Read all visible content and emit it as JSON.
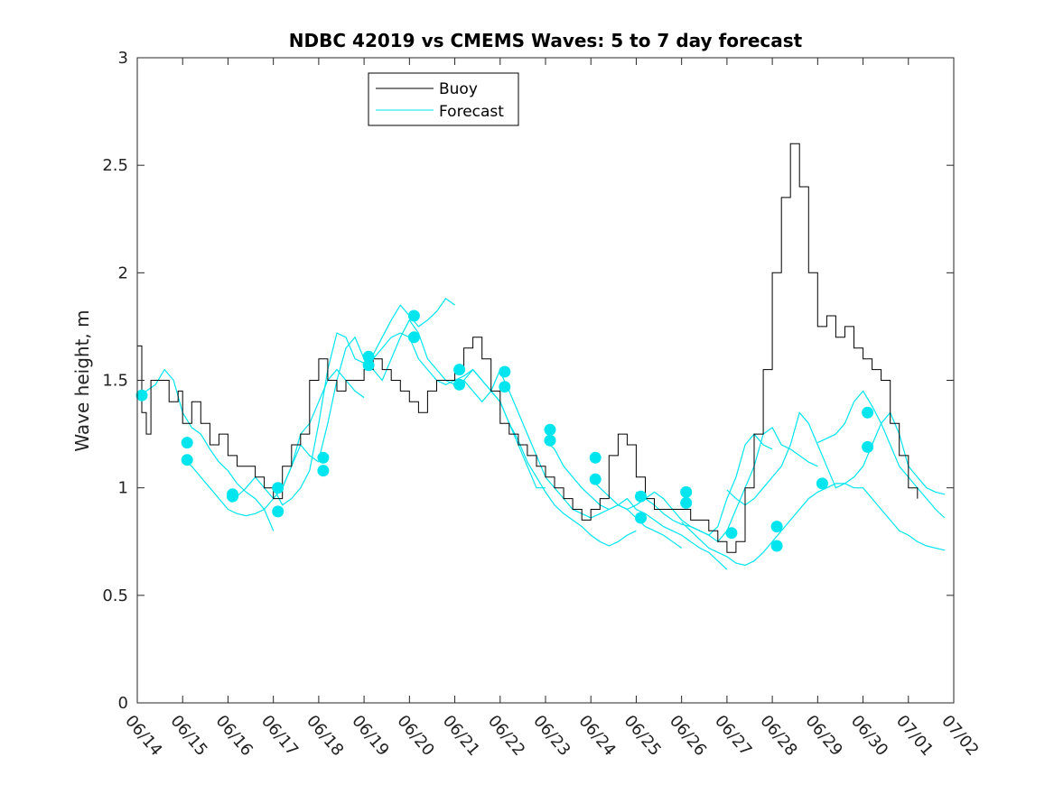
{
  "chart_data": {
    "type": "line",
    "title": "NDBC 42019 vs CMEMS Waves: 5 to 7 day forecast",
    "xlabel": "",
    "ylabel": "Wave height, m",
    "ylim": [
      0,
      3
    ],
    "yticks": [
      "0",
      "0.5",
      "1",
      "1.5",
      "2",
      "2.5",
      "3"
    ],
    "xticks": [
      "06/14",
      "06/15",
      "06/16",
      "06/17",
      "06/18",
      "06/19",
      "06/20",
      "06/21",
      "06/22",
      "06/23",
      "06/24",
      "06/25",
      "06/26",
      "06/27",
      "06/28",
      "06/29",
      "06/30",
      "07/01",
      "07/02"
    ],
    "grid": false,
    "legend_position": "top-center",
    "colors": {
      "buoy": "#000000",
      "forecast": "#00e5ee"
    },
    "series": [
      {
        "name": "Buoy",
        "x": [
          0,
          0.1,
          0.2,
          0.3,
          0.5,
          0.7,
          0.9,
          1.0,
          1.2,
          1.4,
          1.6,
          1.8,
          2.0,
          2.2,
          2.4,
          2.6,
          2.8,
          3.0,
          3.2,
          3.4,
          3.6,
          3.8,
          4.0,
          4.2,
          4.4,
          4.6,
          4.8,
          5.0,
          5.2,
          5.4,
          5.6,
          5.8,
          6.0,
          6.2,
          6.4,
          6.6,
          6.8,
          7.0,
          7.2,
          7.4,
          7.6,
          7.8,
          8.0,
          8.2,
          8.4,
          8.6,
          8.8,
          9.0,
          9.2,
          9.4,
          9.6,
          9.8,
          10.0,
          10.2,
          10.4,
          10.6,
          10.8,
          11.0,
          11.2,
          11.4,
          11.6,
          11.8,
          12.0,
          12.2,
          12.4,
          12.6,
          12.8,
          13.0,
          13.2,
          13.4,
          13.6,
          13.8,
          14.0,
          14.2,
          14.4,
          14.6,
          14.8,
          15.0,
          15.2,
          15.4,
          15.6,
          15.8,
          16.0,
          16.2,
          16.4,
          16.6,
          16.8,
          17.0,
          17.2
        ],
        "values": [
          1.66,
          1.35,
          1.25,
          1.5,
          1.5,
          1.4,
          1.45,
          1.3,
          1.4,
          1.3,
          1.2,
          1.25,
          1.15,
          1.1,
          1.1,
          1.05,
          1.0,
          0.95,
          1.1,
          1.2,
          1.25,
          1.5,
          1.6,
          1.5,
          1.45,
          1.5,
          1.5,
          1.55,
          1.6,
          1.55,
          1.5,
          1.45,
          1.4,
          1.35,
          1.45,
          1.5,
          1.5,
          1.55,
          1.65,
          1.7,
          1.6,
          1.45,
          1.3,
          1.25,
          1.2,
          1.15,
          1.1,
          1.05,
          1.0,
          0.95,
          0.9,
          0.85,
          0.9,
          0.95,
          1.15,
          1.25,
          1.2,
          1.05,
          0.95,
          0.9,
          0.9,
          0.9,
          0.9,
          0.85,
          0.85,
          0.8,
          0.75,
          0.7,
          0.75,
          1.0,
          1.25,
          1.55,
          2.0,
          2.35,
          2.6,
          2.4,
          2.0,
          1.75,
          1.8,
          1.7,
          1.75,
          1.65,
          1.6,
          1.55,
          1.5,
          1.3,
          1.15,
          1.0,
          0.95
        ]
      },
      {
        "name": "Forecast",
        "segments": [
          {
            "x": [
              0,
              0.2,
              0.4,
              0.6,
              0.8,
              1.0,
              1.2,
              1.4,
              1.6,
              1.8,
              2.0,
              2.2,
              2.4,
              2.6,
              2.8,
              3.0
            ],
            "values": [
              1.42,
              1.45,
              1.48,
              1.55,
              1.5,
              1.35,
              1.28,
              1.25,
              1.18,
              1.12,
              1.08,
              1.02,
              0.98,
              0.95,
              0.9,
              0.8
            ]
          },
          {
            "x": [
              1.0,
              1.2,
              1.4,
              1.6,
              1.8,
              2.0,
              2.2,
              2.4,
              2.6,
              2.8,
              3.0,
              3.2,
              3.4,
              3.6,
              3.8,
              4.0
            ],
            "values": [
              1.13,
              1.1,
              1.05,
              1.0,
              0.95,
              0.9,
              0.88,
              0.87,
              0.88,
              0.9,
              0.95,
              1.0,
              1.1,
              1.2,
              1.15,
              1.12
            ]
          },
          {
            "x": [
              2.0,
              2.2,
              2.4,
              2.6,
              2.8,
              3.0,
              3.2,
              3.4,
              3.6,
              3.8,
              4.0,
              4.2,
              4.4,
              4.6,
              4.8,
              5.0
            ],
            "values": [
              0.97,
              0.96,
              1.0,
              1.05,
              1.0,
              0.95,
              1.0,
              1.1,
              1.25,
              1.3,
              1.4,
              1.5,
              1.55,
              1.5,
              1.45,
              1.42
            ]
          },
          {
            "x": [
              3.0,
              3.2,
              3.4,
              3.6,
              3.8,
              4.0,
              4.2,
              4.4,
              4.6,
              4.8,
              5.0,
              5.2,
              5.4,
              5.6,
              5.8,
              6.0,
              6.2,
              6.4,
              6.6,
              6.8,
              7.0
            ],
            "values": [
              1.0,
              0.92,
              0.95,
              1.0,
              1.08,
              1.3,
              1.55,
              1.72,
              1.7,
              1.6,
              1.58,
              1.62,
              1.7,
              1.78,
              1.85,
              1.8,
              1.75,
              1.78,
              1.82,
              1.88,
              1.85
            ]
          },
          {
            "x": [
              4.0,
              4.2,
              4.4,
              4.6,
              4.8,
              5.0,
              5.2,
              5.4,
              5.6,
              5.8,
              6.0,
              6.2,
              6.4,
              6.6,
              6.8,
              7.0,
              7.2,
              7.4,
              7.6,
              7.8,
              8.0
            ],
            "values": [
              1.13,
              1.3,
              1.5,
              1.65,
              1.7,
              1.6,
              1.55,
              1.5,
              1.6,
              1.7,
              1.78,
              1.72,
              1.6,
              1.55,
              1.5,
              1.48,
              1.5,
              1.45,
              1.4,
              1.45,
              1.55
            ]
          },
          {
            "x": [
              5.0,
              5.2,
              5.4,
              5.6,
              5.8,
              6.0,
              6.2,
              6.4,
              6.6,
              6.8,
              7.0,
              7.2,
              7.4,
              7.6,
              7.8,
              8.0,
              8.2,
              8.4,
              8.6,
              8.8,
              9.0
            ],
            "values": [
              1.57,
              1.6,
              1.65,
              1.7,
              1.72,
              1.7,
              1.6,
              1.55,
              1.5,
              1.48,
              1.5,
              1.52,
              1.55,
              1.5,
              1.45,
              1.4,
              1.3,
              1.2,
              1.1,
              1.0,
              1.0
            ]
          },
          {
            "x": [
              7.0,
              7.2,
              7.4,
              7.6,
              7.8,
              8.0,
              8.2,
              8.4,
              8.6,
              8.8,
              9.0,
              9.2,
              9.4,
              9.6,
              9.8,
              10.0,
              10.2,
              10.4,
              10.6,
              10.8,
              11.0
            ],
            "values": [
              1.48,
              1.5,
              1.55,
              1.5,
              1.45,
              1.4,
              1.3,
              1.22,
              1.12,
              1.05,
              0.98,
              0.92,
              0.88,
              0.85,
              0.82,
              0.78,
              0.75,
              0.73,
              0.75,
              0.78,
              0.8
            ]
          },
          {
            "x": [
              8.0,
              8.2,
              8.4,
              8.6,
              8.8,
              9.0,
              9.2,
              9.4,
              9.6,
              9.8,
              10.0,
              10.2,
              10.4,
              10.6,
              10.8,
              11.0,
              11.2,
              11.4,
              11.6,
              11.8,
              12.0
            ],
            "values": [
              1.54,
              1.45,
              1.35,
              1.25,
              1.15,
              1.05,
              1.0,
              0.95,
              0.9,
              0.88,
              0.86,
              0.88,
              0.9,
              0.92,
              0.9,
              0.86,
              0.82,
              0.8,
              0.78,
              0.75,
              0.72
            ]
          },
          {
            "x": [
              9.0,
              9.2,
              9.4,
              9.6,
              9.8,
              10.0,
              10.2,
              10.4,
              10.6,
              10.8,
              11.0,
              11.2,
              11.4,
              11.6,
              11.8,
              12.0,
              12.2,
              12.4,
              12.6,
              12.8,
              13.0
            ],
            "values": [
              1.22,
              1.18,
              1.1,
              1.05,
              1.0,
              0.96,
              0.92,
              0.9,
              0.92,
              0.95,
              0.9,
              0.88,
              0.85,
              0.82,
              0.8,
              0.78,
              0.75,
              0.72,
              0.7,
              0.66,
              0.62
            ]
          },
          {
            "x": [
              10.0,
              10.2,
              10.4,
              10.6,
              10.8,
              11.0,
              11.2,
              11.4,
              11.6,
              11.8,
              12.0,
              12.2,
              12.4,
              12.6,
              12.8,
              13.0,
              13.2,
              13.4,
              13.6,
              13.8,
              14.0
            ],
            "values": [
              1.04,
              1.0,
              0.96,
              0.92,
              0.9,
              0.92,
              0.95,
              0.98,
              0.95,
              0.9,
              0.85,
              0.82,
              0.8,
              0.78,
              0.82,
              0.95,
              1.05,
              1.2,
              1.25,
              1.2,
              1.18
            ]
          },
          {
            "x": [
              11.0,
              11.2,
              11.4,
              11.6,
              11.8,
              12.0,
              12.2,
              12.4,
              12.6,
              12.8,
              13.0,
              13.2,
              13.4,
              13.6,
              13.8,
              14.0,
              14.2,
              14.4,
              14.6,
              14.8,
              15.0
            ],
            "values": [
              0.98,
              0.95,
              0.92,
              0.88,
              0.85,
              0.83,
              0.82,
              0.8,
              0.78,
              0.75,
              0.8,
              0.9,
              1.0,
              1.1,
              1.25,
              1.28,
              1.2,
              1.18,
              1.15,
              1.12,
              1.1
            ]
          },
          {
            "x": [
              12.0,
              12.2,
              12.4,
              12.6,
              12.8,
              13.0,
              13.2,
              13.4,
              13.6,
              13.8,
              14.0,
              14.2,
              14.4,
              14.6,
              14.8,
              15.0,
              15.2,
              15.4,
              15.6,
              15.8,
              16.0,
              16.2,
              16.4,
              16.6,
              16.8,
              17.0,
              17.2,
              17.4,
              17.6,
              17.8
            ],
            "values": [
              0.84,
              0.8,
              0.76,
              0.72,
              0.7,
              0.68,
              0.65,
              0.64,
              0.66,
              0.7,
              0.75,
              0.8,
              0.85,
              0.9,
              0.95,
              0.98,
              1.0,
              1.02,
              1.02,
              1.0,
              1.0,
              0.95,
              0.9,
              0.85,
              0.8,
              0.78,
              0.75,
              0.73,
              0.72,
              0.71
            ]
          },
          {
            "x": [
              13.0,
              13.2,
              13.4,
              13.6,
              13.8,
              14.0,
              14.2,
              14.4,
              14.6,
              14.8,
              15.0,
              15.2,
              15.4,
              15.6,
              15.8,
              16.0,
              16.2,
              16.4,
              16.6,
              16.8,
              17.0,
              17.2,
              17.4,
              17.6,
              17.8
            ],
            "values": [
              0.99,
              0.95,
              0.92,
              0.95,
              1.0,
              1.05,
              1.1,
              1.2,
              1.35,
              1.3,
              1.2,
              1.1,
              1.0,
              1.02,
              1.05,
              1.1,
              1.2,
              1.3,
              1.35,
              1.25,
              1.1,
              1.05,
              1.0,
              0.98,
              0.97
            ]
          },
          {
            "x": [
              15.0,
              15.2,
              15.4,
              15.6,
              15.8,
              16.0,
              16.2,
              16.4,
              16.6,
              16.8,
              17.0,
              17.2,
              17.4,
              17.6,
              17.8
            ],
            "values": [
              1.21,
              1.23,
              1.25,
              1.3,
              1.4,
              1.45,
              1.38,
              1.3,
              1.2,
              1.1,
              1.05,
              1.0,
              0.95,
              0.9,
              0.86
            ]
          }
        ],
        "markers": {
          "x": [
            0.1,
            1.1,
            1.1,
            2.1,
            2.1,
            3.1,
            3.1,
            4.1,
            4.1,
            5.1,
            5.1,
            6.1,
            6.1,
            7.1,
            7.1,
            8.1,
            8.1,
            9.1,
            9.1,
            10.1,
            10.1,
            11.1,
            11.1,
            12.1,
            12.1,
            13.1,
            14.1,
            14.1,
            15.1,
            16.1,
            16.1
          ],
          "values": [
            1.43,
            1.21,
            1.13,
            0.96,
            0.97,
            1.0,
            0.89,
            1.14,
            1.08,
            1.61,
            1.57,
            1.8,
            1.7,
            1.55,
            1.48,
            1.54,
            1.47,
            1.27,
            1.22,
            1.14,
            1.04,
            0.96,
            0.86,
            0.98,
            0.93,
            0.79,
            0.82,
            0.73,
            1.02,
            1.19,
            1.35
          ]
        }
      }
    ]
  }
}
